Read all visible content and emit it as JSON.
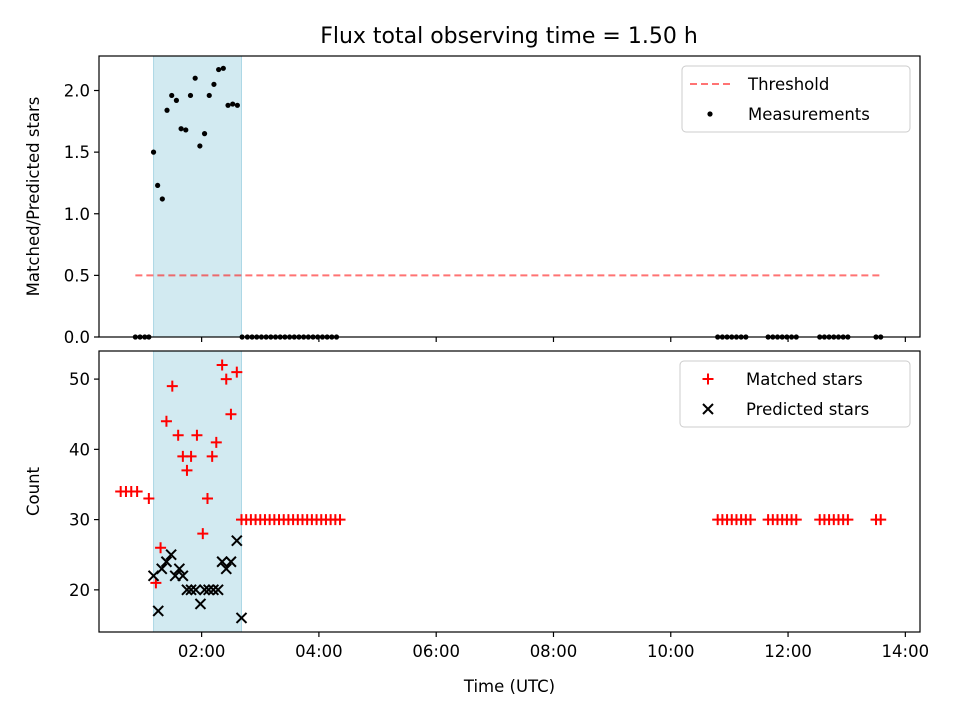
{
  "figure": {
    "title": "Flux total observing time = 1.50 h"
  },
  "colors": {
    "highlight": "#add8e6",
    "threshold": "#ff0000",
    "measurements": "#000000",
    "matched": "#ff0000",
    "predicted": "#000000"
  },
  "chart_data": [
    {
      "type": "scatter",
      "ylabel": "Matched/Predicted stars",
      "xlabel": "",
      "x_unit": "hours UTC",
      "xlim_hours": [
        0.25,
        14.25
      ],
      "ylim": [
        0.0,
        2.28
      ],
      "yticks": [
        "0.0",
        "0.5",
        "1.0",
        "1.5",
        "2.0"
      ],
      "highlight_span_hours": [
        1.18,
        2.68
      ],
      "legend": {
        "location": "top-right",
        "entries": [
          "Threshold",
          "Measurements"
        ]
      },
      "series": [
        {
          "name": "Threshold",
          "kind": "dashed-line",
          "x": [
            0.87,
            13.6
          ],
          "y": [
            0.5,
            0.5
          ]
        },
        {
          "name": "Measurements",
          "kind": "dots",
          "x": [
            0.87,
            0.95,
            1.03,
            1.1,
            1.18,
            1.25,
            1.33,
            1.41,
            1.49,
            1.57,
            1.65,
            1.73,
            1.81,
            1.89,
            1.97,
            2.05,
            2.13,
            2.21,
            2.29,
            2.37,
            2.45,
            2.53,
            2.61,
            2.69,
            2.78,
            2.86,
            2.94,
            3.02,
            3.1,
            3.18,
            3.26,
            3.34,
            3.42,
            3.5,
            3.58,
            3.66,
            3.74,
            3.82,
            3.9,
            3.98,
            4.06,
            4.14,
            4.22,
            4.3,
            10.8,
            10.88,
            10.96,
            11.04,
            11.12,
            11.2,
            11.28,
            11.66,
            11.74,
            11.82,
            11.9,
            11.98,
            12.06,
            12.14,
            12.54,
            12.62,
            12.7,
            12.78,
            12.86,
            12.94,
            13.02,
            13.5,
            13.58
          ],
          "y": [
            0,
            0,
            0,
            0,
            1.5,
            1.23,
            1.12,
            1.84,
            1.96,
            1.92,
            1.69,
            1.68,
            1.96,
            2.1,
            1.55,
            1.65,
            1.96,
            2.05,
            2.17,
            2.18,
            1.88,
            1.89,
            1.88,
            0,
            0,
            0,
            0,
            0,
            0,
            0,
            0,
            0,
            0,
            0,
            0,
            0,
            0,
            0,
            0,
            0,
            0,
            0,
            0,
            0,
            0,
            0,
            0,
            0,
            0,
            0,
            0,
            0,
            0,
            0,
            0,
            0,
            0,
            0,
            0,
            0,
            0,
            0,
            0,
            0,
            0,
            0,
            0
          ]
        }
      ]
    },
    {
      "type": "scatter",
      "ylabel": "Count",
      "xlabel": "Time (UTC)",
      "x_unit": "hours UTC",
      "xlim_hours": [
        0.25,
        14.25
      ],
      "ylim": [
        14,
        54
      ],
      "yticks": [
        "20",
        "30",
        "40",
        "50"
      ],
      "xtick_hours": [
        2,
        4,
        6,
        8,
        10,
        12,
        14
      ],
      "xticks": [
        "02:00",
        "04:00",
        "06:00",
        "08:00",
        "10:00",
        "12:00",
        "14:00"
      ],
      "highlight_span_hours": [
        1.18,
        2.68
      ],
      "legend": {
        "location": "top-right",
        "entries": [
          "Matched stars",
          "Predicted stars"
        ]
      },
      "series": [
        {
          "name": "Matched stars",
          "kind": "plus",
          "x": [
            0.62,
            0.71,
            0.8,
            0.9,
            1.1,
            1.22,
            1.3,
            1.4,
            1.5,
            1.6,
            1.68,
            1.75,
            1.82,
            1.92,
            2.02,
            2.1,
            2.18,
            2.25,
            2.35,
            2.42,
            2.5,
            2.6,
            2.68,
            2.76,
            2.84,
            2.92,
            3.0,
            3.08,
            3.16,
            3.24,
            3.32,
            3.4,
            3.48,
            3.56,
            3.64,
            3.72,
            3.8,
            3.88,
            3.96,
            4.04,
            4.12,
            4.2,
            4.28,
            4.36,
            10.8,
            10.88,
            10.96,
            11.04,
            11.12,
            11.2,
            11.28,
            11.36,
            11.66,
            11.74,
            11.82,
            11.9,
            11.98,
            12.06,
            12.14,
            12.54,
            12.62,
            12.7,
            12.78,
            12.86,
            12.94,
            13.02,
            13.5,
            13.58
          ],
          "y": [
            34,
            34,
            34,
            34,
            33,
            21,
            26,
            44,
            49,
            42,
            39,
            37,
            39,
            42,
            28,
            33,
            39,
            41,
            52,
            50,
            45,
            51,
            30,
            30,
            30,
            30,
            30,
            30,
            30,
            30,
            30,
            30,
            30,
            30,
            30,
            30,
            30,
            30,
            30,
            30,
            30,
            30,
            30,
            30,
            30,
            30,
            30,
            30,
            30,
            30,
            30,
            30,
            30,
            30,
            30,
            30,
            30,
            30,
            30,
            30,
            30,
            30,
            30,
            30,
            30,
            30,
            30,
            30
          ]
        },
        {
          "name": "Predicted stars",
          "kind": "x",
          "x": [
            1.18,
            1.26,
            1.32,
            1.4,
            1.48,
            1.55,
            1.62,
            1.68,
            1.75,
            1.82,
            1.9,
            1.98,
            2.05,
            2.12,
            2.2,
            2.28,
            2.35,
            2.42,
            2.5,
            2.6,
            2.68
          ],
          "y": [
            22,
            17,
            23,
            24,
            25,
            22,
            23,
            22,
            20,
            20,
            20,
            18,
            20,
            20,
            20,
            20,
            24,
            23,
            24,
            27,
            16
          ]
        }
      ]
    }
  ]
}
